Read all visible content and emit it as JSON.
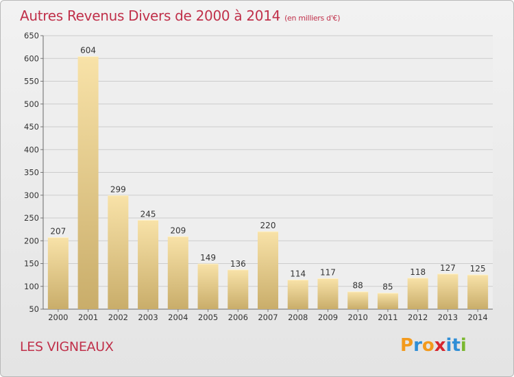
{
  "title": "Autres Revenus Divers de 2000 à 2014",
  "subtitle": "(en milliers d'€)",
  "location": "LES VIGNEAUX",
  "logo": {
    "text": "Proxiti",
    "letters": [
      "P",
      "r",
      "o",
      "x",
      "i",
      "t",
      "i"
    ],
    "colors": [
      "#f39a1c",
      "#2f8ed6",
      "#f39a1c",
      "#d6262e",
      "#2f8ed6",
      "#2f8ed6",
      "#7ab830"
    ]
  },
  "colors": {
    "title": "#c0304a",
    "bar_light": "#f8e2a8",
    "bar_dark": "#c9ad6a",
    "grid": "#cccccc"
  },
  "chart_data": {
    "type": "bar",
    "categories": [
      "2000",
      "2001",
      "2002",
      "2003",
      "2004",
      "2005",
      "2006",
      "2007",
      "2008",
      "2009",
      "2010",
      "2011",
      "2012",
      "2013",
      "2014"
    ],
    "values": [
      207,
      604,
      299,
      245,
      209,
      149,
      136,
      220,
      114,
      117,
      88,
      85,
      118,
      127,
      125
    ],
    "ylim": [
      50,
      650
    ],
    "yticks": [
      50,
      100,
      150,
      200,
      250,
      300,
      350,
      400,
      450,
      500,
      550,
      600,
      650
    ],
    "grid": true
  }
}
